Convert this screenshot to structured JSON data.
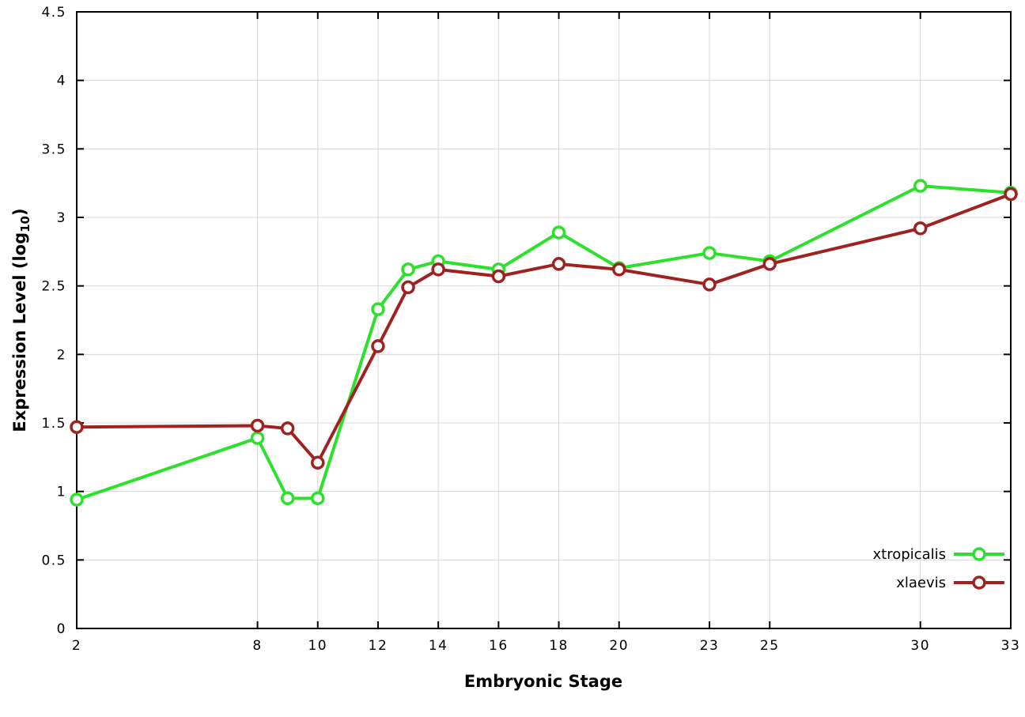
{
  "labels": {
    "y_prefix": "Expression Level (log",
    "y_sub": "10",
    "y_suffix": ")"
  },
  "chart_data": {
    "type": "line",
    "xlabel": "Embryonic Stage",
    "ylabel": "Expression Level (log10)",
    "xlim": [
      2,
      33
    ],
    "ylim": [
      0,
      4.5
    ],
    "x_ticks": [
      2,
      8,
      10,
      12,
      14,
      16,
      18,
      20,
      23,
      25,
      30,
      33
    ],
    "x_tick_labels": [
      "2",
      "8",
      "10",
      "12",
      "14",
      "16",
      "18",
      "20",
      "23",
      "25",
      "30",
      "33"
    ],
    "y_ticks": [
      0,
      0.5,
      1,
      1.5,
      2,
      2.5,
      3,
      3.5,
      4,
      4.5
    ],
    "y_tick_labels": [
      "0",
      "0.5",
      "1",
      "1.5",
      "2",
      "2.5",
      "3",
      "3.5",
      "4",
      "4.5"
    ],
    "grid": true,
    "legend_position": "bottom-right",
    "x": [
      2,
      8,
      9,
      10,
      12,
      13,
      14,
      16,
      18,
      20,
      23,
      25,
      30,
      33
    ],
    "series": [
      {
        "name": "xtropicalis",
        "color": "#2ce02c",
        "marker": "open-circle",
        "values": [
          0.94,
          1.39,
          0.95,
          0.95,
          2.33,
          2.62,
          2.68,
          2.62,
          2.89,
          2.63,
          2.74,
          2.68,
          3.23,
          3.18
        ]
      },
      {
        "name": "xlaevis",
        "color": "#9e2320",
        "marker": "open-circle",
        "values": [
          1.47,
          1.48,
          1.46,
          1.21,
          2.06,
          2.49,
          2.62,
          2.57,
          2.66,
          2.62,
          2.51,
          2.66,
          2.92,
          3.17
        ]
      }
    ],
    "colors": {
      "grid": "#d8d8d8",
      "axis": "#000000",
      "background": "#ffffff"
    }
  }
}
